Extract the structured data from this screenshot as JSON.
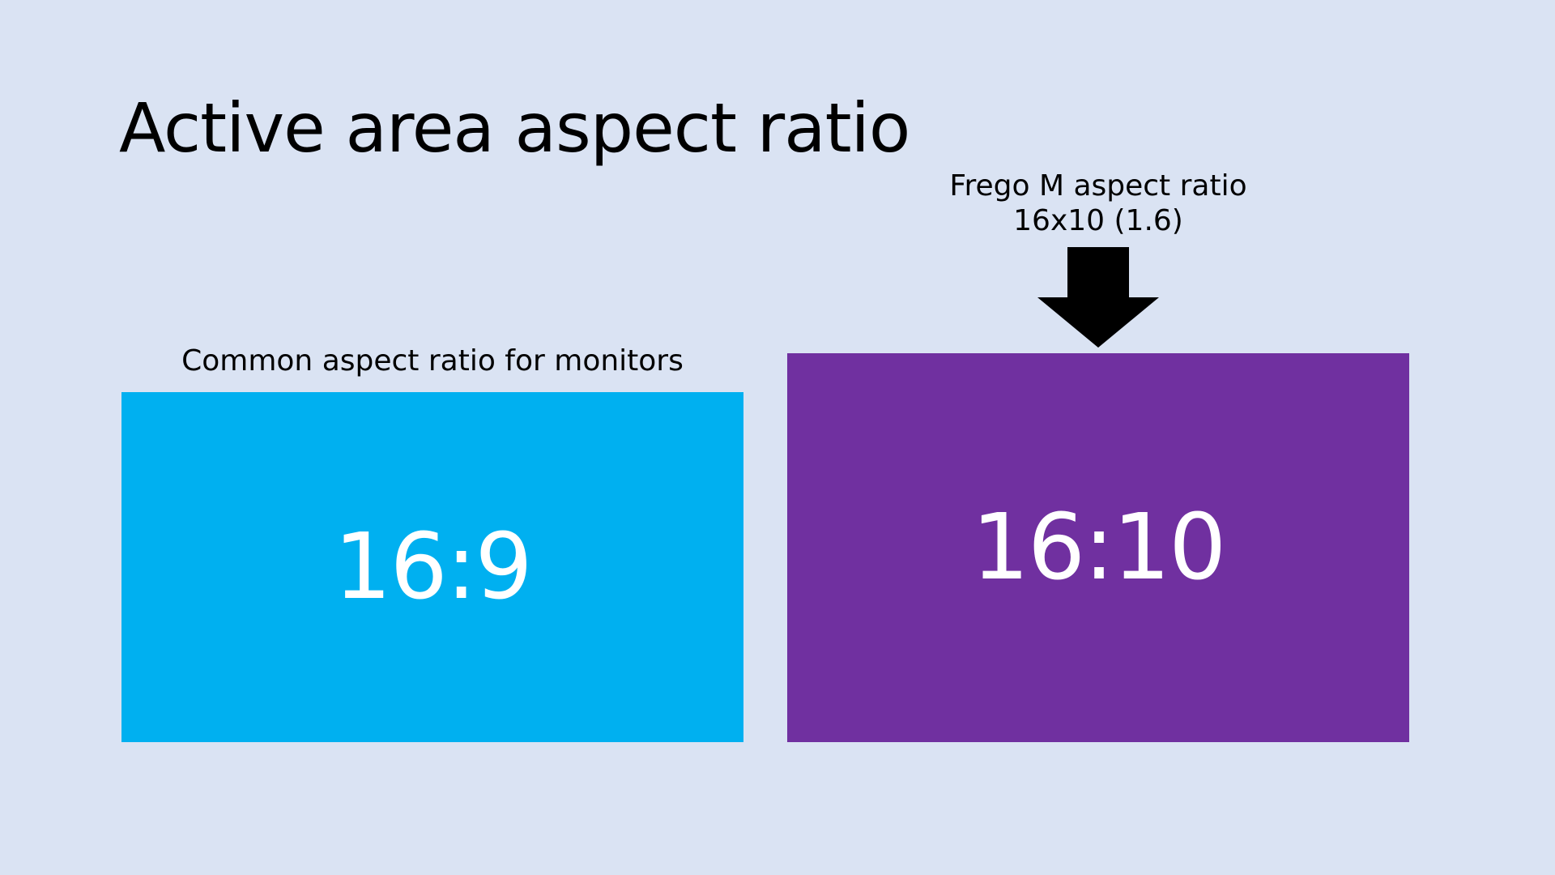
{
  "title": "Active area aspect ratio",
  "left_panel": {
    "caption": "Common aspect ratio for monitors",
    "ratio_label": "16:9",
    "color": "#00b0f0"
  },
  "right_panel": {
    "caption_line1": "Frego M aspect ratio",
    "caption_line2": "16x10 (1.6)",
    "ratio_label": "16:10",
    "color": "#7030a0",
    "pointer_icon": "down-arrow-icon"
  },
  "colors": {
    "background": "#dae3f3",
    "text": "#000000",
    "box_text": "#ffffff",
    "arrow": "#000000"
  }
}
